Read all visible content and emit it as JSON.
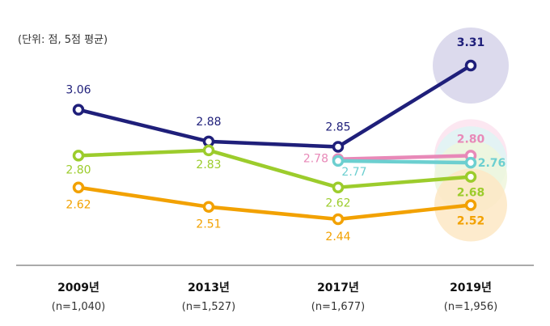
{
  "unit_note": "(단위: 점, 5점 평균)",
  "chart_data": {
    "type": "line",
    "categories": [
      "2009년",
      "2013년",
      "2017년",
      "2019년"
    ],
    "sample_sizes": [
      "(n=1,040)",
      "(n=1,527)",
      "(n=1,677)",
      "(n=1,956)"
    ],
    "ylim": [
      2.3,
      3.4
    ],
    "grid": false,
    "series": [
      {
        "color": "#1f1f7a",
        "values": [
          3.06,
          2.88,
          2.85,
          3.31
        ],
        "labels": [
          "3.06",
          "2.88",
          "2.85",
          "3.31"
        ],
        "bubble": "#d6d3ea"
      },
      {
        "color": "#9ccc2c",
        "values": [
          2.8,
          2.83,
          2.62,
          2.68
        ],
        "labels": [
          "2.80",
          "2.83",
          "2.62",
          "2.68"
        ],
        "bubble": "#eef6dc"
      },
      {
        "color": "#f2a100",
        "values": [
          2.62,
          2.51,
          2.44,
          2.52
        ],
        "labels": [
          "2.62",
          "2.51",
          "2.44",
          "2.52"
        ],
        "bubble": "#fde8c4"
      },
      {
        "color": "#e889b8",
        "values": [
          null,
          null,
          2.78,
          2.8
        ],
        "labels": [
          "",
          "",
          "2.78",
          "2.80"
        ],
        "bubble": "#fbe3ef"
      },
      {
        "color": "#6ccfd0",
        "values": [
          null,
          null,
          2.77,
          2.76
        ],
        "labels": [
          "",
          "",
          "2.77",
          "2.76"
        ],
        "bubble": "#def4f4"
      }
    ]
  }
}
